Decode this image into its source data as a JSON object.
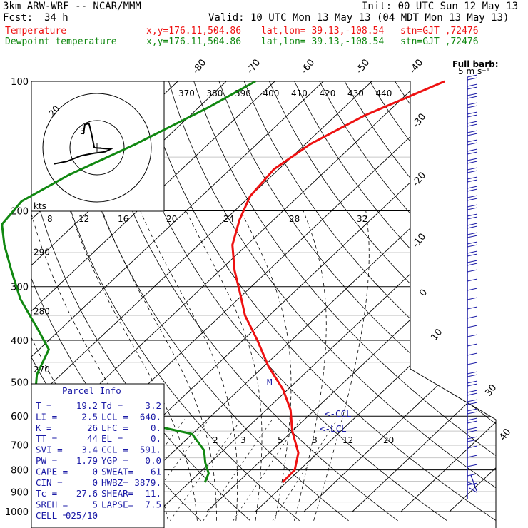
{
  "header": {
    "model": "3km ARW-WRF -- NCAR/MMM",
    "init": "Init: 00 UTC Sun 12 May 13",
    "fcst_label": "Fcst:",
    "fcst_value": "34 h",
    "valid": "Valid: 10 UTC Mon 13 May 13 (04 MDT Mon 13 May 13)",
    "temp_label": "Temperature",
    "temp_point": "x,y=176.11,504.86",
    "temp_latlon": "lat,lon= 39.13,-108.54",
    "temp_stn": "stn=GJT ,72476",
    "dew_label": "Dewpoint temperature",
    "dew_point": "x,y=176.11,504.86",
    "dew_latlon": "lat,lon= 39.13,-108.54",
    "dew_stn": "stn=GJT ,72476"
  },
  "colors": {
    "temperature": "#ee1111",
    "dewpoint": "#118811",
    "parcel_text": "#1a1aa6",
    "wind": "#1a1aa6",
    "grid": "#000000"
  },
  "chart_data": {
    "type": "line",
    "pressure_levels": [
      "100",
      "200",
      "300",
      "400",
      "500",
      "600",
      "700",
      "800",
      "900",
      "1000"
    ],
    "pressure_ticks": [
      100,
      200,
      300,
      400,
      500,
      600,
      700,
      800,
      900,
      1000
    ],
    "temperature_ticks": [
      {
        "label": "-80",
        "value": -80
      },
      {
        "label": "-70",
        "value": -70
      },
      {
        "label": "-60",
        "value": -60
      },
      {
        "label": "-50",
        "value": -50
      },
      {
        "label": "-40",
        "value": -40
      },
      {
        "label": "-30",
        "value": -30
      },
      {
        "label": "-20",
        "value": -20
      },
      {
        "label": "-10",
        "value": -10
      },
      {
        "label": "0",
        "value": 0
      },
      {
        "label": "10",
        "value": 10
      },
      {
        "label": "30",
        "value": 30
      },
      {
        "label": "40",
        "value": 40
      }
    ],
    "theta_e_labels": [
      "370",
      "380",
      "390",
      "400",
      "410",
      "420",
      "430",
      "440"
    ],
    "mixing_ratio_labels": [
      "2",
      "3",
      "5",
      "8",
      "12",
      "20"
    ],
    "side_labels": [
      {
        "label": "290",
        "p": 240
      },
      {
        "label": "280",
        "p": 330
      },
      {
        "label": "270",
        "p": 450
      }
    ],
    "hodograph": {
      "speed_unit": "kts",
      "ring_label": "20",
      "speed_ticks": [
        "8",
        "12",
        "16",
        "20",
        "24",
        "28",
        "32"
      ],
      "trace": [
        [
          -32,
          -12
        ],
        [
          -22,
          -10
        ],
        [
          -12,
          -6
        ],
        [
          -2,
          -4
        ],
        [
          6,
          -3
        ],
        [
          10,
          -1
        ],
        [
          -2,
          0
        ],
        [
          -4,
          10
        ],
        [
          -6,
          18
        ],
        [
          -9,
          17
        ],
        [
          -10,
          10
        ]
      ]
    },
    "wind_barb_header": [
      "Full barb:",
      "5 m s⁻¹"
    ],
    "markers": [
      "M",
      "<-CCL",
      "<-LCL"
    ],
    "series": [
      {
        "name": "Temperature",
        "color": "#ee1111",
        "points": [
          [
            -35,
            100
          ],
          [
            -44,
            120
          ],
          [
            -49,
            140
          ],
          [
            -51,
            160
          ],
          [
            -50,
            185
          ],
          [
            -47,
            210
          ],
          [
            -43,
            240
          ],
          [
            -37,
            275
          ],
          [
            -31,
            310
          ],
          [
            -25,
            350
          ],
          [
            -17,
            400
          ],
          [
            -9,
            460
          ],
          [
            -1,
            520
          ],
          [
            5,
            580
          ],
          [
            10,
            650
          ],
          [
            16,
            730
          ],
          [
            19,
            800
          ],
          [
            19.2,
            855
          ]
        ]
      },
      {
        "name": "Dewpoint temperature",
        "color": "#118811",
        "points": [
          [
            -74,
            100
          ],
          [
            -78,
            115
          ],
          [
            -85,
            140
          ],
          [
            -92,
            165
          ],
          [
            -96,
            190
          ],
          [
            -95,
            215
          ],
          [
            -90,
            240
          ],
          [
            -83,
            275
          ],
          [
            -75,
            320
          ],
          [
            -65,
            375
          ],
          [
            -58,
            420
          ],
          [
            -55,
            480
          ],
          [
            -52,
            520
          ],
          [
            -40,
            570
          ],
          [
            -27,
            610
          ],
          [
            -10,
            660
          ],
          [
            -4,
            720
          ],
          [
            -1,
            770
          ],
          [
            2,
            815
          ],
          [
            3.2,
            855
          ]
        ]
      }
    ]
  },
  "parcel_info": {
    "title": "Parcel Info",
    "rows": [
      [
        "T  =",
        "19.2",
        "Td =",
        "3.2"
      ],
      [
        "LI =",
        "2.5",
        "LCL =",
        "640."
      ],
      [
        "K  =",
        "26",
        "LFC =",
        "0."
      ],
      [
        "TT =",
        "44",
        "EL  =",
        "0."
      ],
      [
        "SVI =",
        "3.4",
        "CCL =",
        "591."
      ],
      [
        "PW =",
        "1.79",
        "YGP =",
        "0.0"
      ],
      [
        "CAPE =",
        "0",
        "SWEAT=",
        "61"
      ],
      [
        "CIN =",
        "0",
        "HWBZ=",
        "3879."
      ],
      [
        "Tc =",
        "27.6",
        "SHEAR=",
        "11."
      ],
      [
        "SREH =",
        "5",
        "LAPSE=",
        "7.5"
      ],
      [
        "CELL =",
        "025/10",
        "",
        ""
      ]
    ]
  }
}
